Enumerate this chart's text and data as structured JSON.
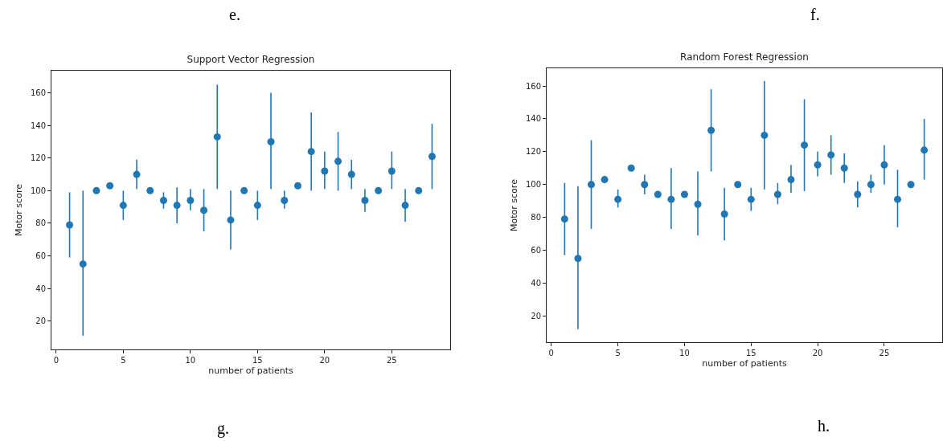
{
  "chart_data": [
    {
      "type": "scatter",
      "title": "Support Vector Regression",
      "xlabel": "number of patients",
      "ylabel": "Motor score",
      "annotations": [
        "e.",
        "g."
      ],
      "marker": "circle",
      "xlim": [
        -0.35,
        29.35
      ],
      "ylim": [
        2.6,
        173.6
      ],
      "xticks": [
        0,
        5,
        10,
        15,
        20,
        25
      ],
      "yticks": [
        20,
        40,
        60,
        80,
        100,
        120,
        140,
        160
      ],
      "series": [
        {
          "color": "#1f77b4",
          "x": [
            1,
            2,
            3,
            4,
            5,
            6,
            7,
            8,
            9,
            10,
            11,
            12,
            13,
            14,
            15,
            16,
            17,
            18,
            19,
            20,
            21,
            22,
            23,
            24,
            25,
            26,
            27,
            28
          ],
          "values": [
            79,
            55,
            100,
            103,
            91,
            110,
            100,
            94,
            91,
            94,
            88,
            133,
            82,
            100,
            91,
            130,
            94,
            103,
            124,
            112,
            118,
            110,
            94,
            100,
            112,
            91,
            100,
            121
          ],
          "errors": [
            [
              59,
              99
            ],
            [
              11,
              100
            ],
            null,
            null,
            [
              82,
              100
            ],
            [
              101,
              119
            ],
            null,
            [
              89,
              99
            ],
            [
              80,
              102
            ],
            [
              88,
              101
            ],
            [
              75,
              101
            ],
            [
              101,
              165
            ],
            [
              64,
              100
            ],
            null,
            [
              82,
              100
            ],
            [
              101,
              160
            ],
            [
              89,
              100
            ],
            null,
            [
              100,
              148
            ],
            [
              101,
              124
            ],
            [
              100,
              136
            ],
            [
              101,
              119
            ],
            [
              87,
              101
            ],
            null,
            [
              101,
              124
            ],
            [
              81,
              101
            ],
            null,
            [
              101,
              141
            ]
          ]
        }
      ]
    },
    {
      "type": "scatter",
      "title": "Random Forest Regression",
      "xlabel": "number of patients",
      "ylabel": "Motor score",
      "annotations": [
        "f.",
        "h."
      ],
      "marker": "circle",
      "xlim": [
        -0.35,
        29.35
      ],
      "ylim": [
        4,
        170.8
      ],
      "xticks": [
        0,
        5,
        10,
        15,
        20,
        25
      ],
      "yticks": [
        20,
        40,
        60,
        80,
        100,
        120,
        140,
        160
      ],
      "series": [
        {
          "color": "#1f77b4",
          "x": [
            1,
            2,
            3,
            4,
            5,
            6,
            7,
            8,
            9,
            10,
            11,
            12,
            13,
            14,
            15,
            16,
            17,
            18,
            19,
            20,
            21,
            22,
            23,
            24,
            25,
            26,
            27,
            28
          ],
          "values": [
            79,
            55,
            100,
            103,
            91,
            110,
            100,
            94,
            91,
            94,
            88,
            133,
            82,
            100,
            91,
            130,
            94,
            103,
            124,
            112,
            118,
            110,
            94,
            100,
            112,
            91,
            100,
            121
          ],
          "errors": [
            [
              57,
              101
            ],
            [
              12,
              99
            ],
            [
              73,
              127
            ],
            null,
            [
              86,
              97
            ],
            null,
            [
              94,
              106
            ],
            null,
            [
              73,
              110
            ],
            null,
            [
              69,
              108
            ],
            [
              108,
              158
            ],
            [
              66,
              98
            ],
            null,
            [
              84,
              98
            ],
            [
              97,
              163
            ],
            [
              88,
              101
            ],
            [
              95,
              112
            ],
            [
              96,
              152
            ],
            [
              105,
              120
            ],
            [
              106,
              130
            ],
            [
              101,
              119
            ],
            [
              86,
              102
            ],
            [
              95,
              106
            ],
            [
              100,
              124
            ],
            [
              74,
              109
            ],
            null,
            [
              103,
              140
            ]
          ]
        }
      ]
    }
  ]
}
